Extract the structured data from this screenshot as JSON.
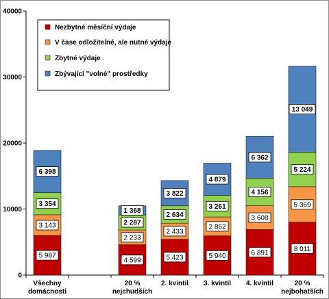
{
  "chart_data": {
    "type": "bar",
    "stacked": true,
    "title": "",
    "xlabel": "",
    "ylabel": "",
    "ylim": [
      0,
      40000
    ],
    "y_ticks": [
      0,
      10000,
      20000,
      30000,
      40000
    ],
    "grid": false,
    "legend_position": "top-left",
    "categories": [
      "Všechny domácnosti",
      "",
      "20 % nejchudších",
      "2. kvintil",
      "3. kvintil",
      "4. kvintil",
      "20 % nejbohatších"
    ],
    "series": [
      {
        "name": "Nezbytné měsíční výdaje",
        "color": "#c00000",
        "values": [
          5987,
          null,
          4599,
          5423,
          5940,
          6891,
          8011
        ],
        "labels": [
          "5 987",
          "",
          "4 599",
          "5 423",
          "5 940",
          "6 891",
          "8 011"
        ]
      },
      {
        "name": "V čase odložitelné, ale nutné výdaje",
        "color": "#f79646",
        "values": [
          3143,
          null,
          2233,
          2433,
          2862,
          3608,
          5369
        ],
        "labels": [
          "3 143",
          "",
          "2 233",
          "2 433",
          "2 862",
          "3 608",
          "5 369"
        ]
      },
      {
        "name": "Zbytné výdaje",
        "color": "#92d050",
        "values": [
          3354,
          null,
          2287,
          2634,
          3261,
          4156,
          5224
        ],
        "labels": [
          "3 354",
          "",
          "2 287",
          "2 634",
          "3 261",
          "4 156",
          "5 224"
        ]
      },
      {
        "name": "Zbývající \"volné\" prostředky",
        "color": "#4f81bd",
        "values": [
          6398,
          null,
          1368,
          3822,
          4879,
          6362,
          13049
        ],
        "labels": [
          "6 398",
          "",
          "1 368",
          "3 822",
          "4 879",
          "6 362",
          "13 049"
        ]
      }
    ]
  },
  "axis": {
    "y_tick_labels": [
      "0",
      "10000",
      "20000",
      "30000",
      "40000"
    ],
    "x_tick_lines": [
      [
        "Všechny",
        "domácnosti"
      ],
      [
        "",
        ""
      ],
      [
        "20 %",
        "nejchudších"
      ],
      [
        "2. kvintil",
        ""
      ],
      [
        "3. kvintil",
        ""
      ],
      [
        "4. kvintil",
        ""
      ],
      [
        "20 %",
        "nejbohatších"
      ]
    ]
  }
}
